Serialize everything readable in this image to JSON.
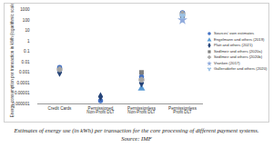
{
  "chart_data": {
    "type": "scatter",
    "caption": "Estimates of energy use (in kWh) per transaction for the core processing of different payment systems. Source: IMF",
    "y_label": "Energy consumption per transaction in kWh (logarithmic scale)",
    "categories": [
      "Credit Cards",
      "Permissioned Non-Profit DLT",
      "Permissionless Non-Profit DLT",
      "Permissionless Profit DLT"
    ],
    "log": "y",
    "ylim": [
      1e-06,
      1000
    ],
    "yticks": [
      1000,
      100,
      10,
      1,
      0.1,
      0.01,
      0.001,
      0.0001,
      1e-05,
      1e-06
    ],
    "grid": false,
    "legend": "right",
    "series": [
      {
        "name": "Sources' own estimates",
        "color": "#4472c4",
        "marker": "circle",
        "values": [
          0.003,
          2e-06,
          0.0004,
          500
        ]
      },
      {
        "name": "Engelmann and others (2019)",
        "color": "#5b9bd5",
        "marker": "triangle",
        "values": [
          null,
          null,
          3e-05,
          null
        ]
      },
      {
        "name": "Platt and others (2021)",
        "color": "#264478",
        "marker": "diamond",
        "values": [
          0.001,
          5e-06,
          0.0001,
          200
        ]
      },
      {
        "name": "Sedlmeir and others (2020a)",
        "color": "#7f7f7f",
        "marker": "square",
        "values": [
          null,
          null,
          0.001,
          300
        ]
      },
      {
        "name": "Sedlmeir and others (2020b)",
        "color": "#a5a5a5",
        "marker": "cross",
        "values": [
          0.002,
          null,
          0.0002,
          400
        ]
      },
      {
        "name": "Vranken (2017)",
        "color": "#8faadc",
        "marker": "star",
        "values": [
          null,
          null,
          null,
          100
        ]
      },
      {
        "name": "Gallersdörfer and others (2020)",
        "color": "#9dc3e6",
        "marker": "wye",
        "values": [
          null,
          null,
          null,
          250
        ]
      }
    ]
  }
}
